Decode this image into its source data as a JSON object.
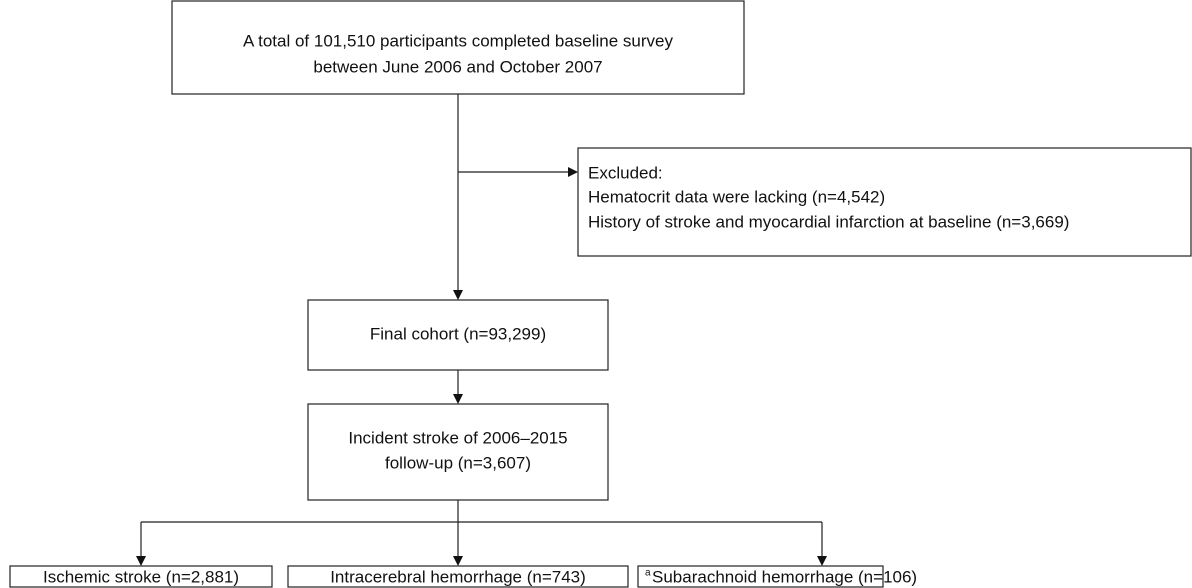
{
  "nodes": [
    {
      "lines": [
        "A total of 101,510 participants completed baseline survey",
        "between June 2006 and October 2007"
      ]
    },
    {
      "title": "Excluded:",
      "items": [
        "Hematocrit data were lacking (n=4,542)",
        "History of stroke and myocardial infarction at baseline (n=3,669)"
      ]
    },
    {
      "lines": [
        "Final cohort (n=93,299)"
      ]
    },
    {
      "lines": [
        "Incident stroke of 2006–2015",
        "follow-up (n=3,607)"
      ]
    },
    {
      "label": "Ischemic stroke (n=2,881)"
    },
    {
      "label": "Intracerebral hemorrhage (n=743)"
    },
    {
      "marker": "a",
      "label": "Subarachnoid hemorrhage (n=106)"
    }
  ]
}
